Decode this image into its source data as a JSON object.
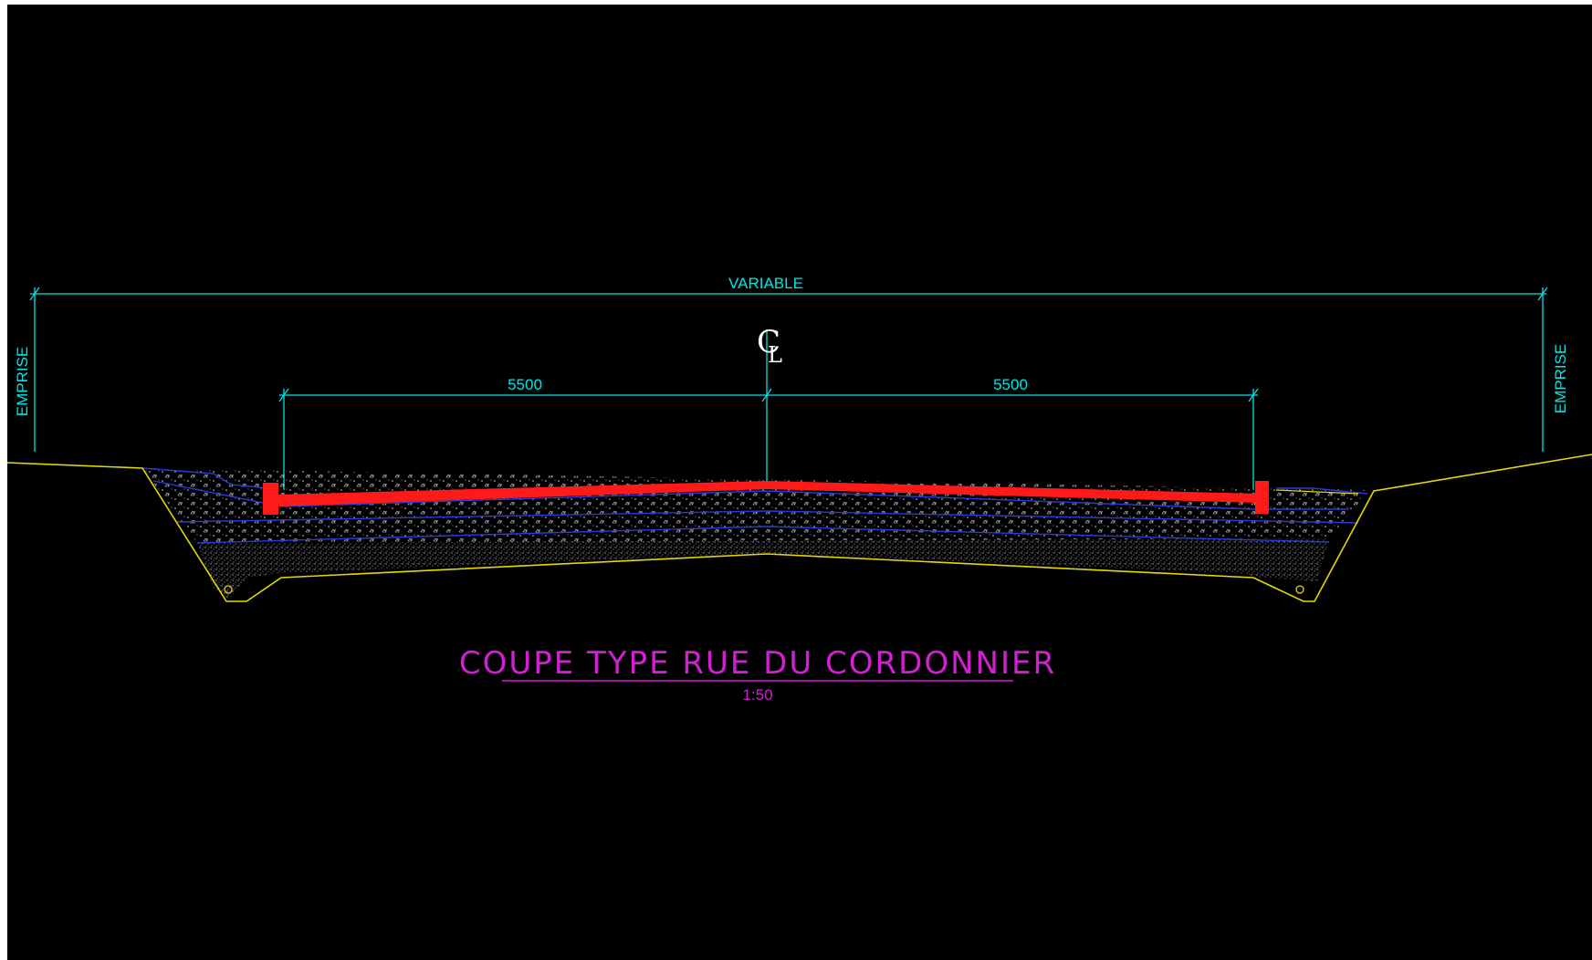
{
  "drawing": {
    "overall_dimension": "VARIABLE",
    "left_limit_label": "EMPRISE",
    "right_limit_label": "EMPRISE",
    "centerline_symbol": "C",
    "centerline_symbol_sub": "L",
    "left_lane_width": "5500",
    "right_lane_width": "5500",
    "title": "COUPE TYPE RUE DU CORDONNIER",
    "scale": "1:50"
  },
  "colors": {
    "background": "#000000",
    "dimension_lines": "#00e5e5",
    "pavement": "#ff1a1a",
    "ground_line": "#e6d800",
    "layer_lines": "#2a3ad8",
    "title": "#d21fd2"
  }
}
